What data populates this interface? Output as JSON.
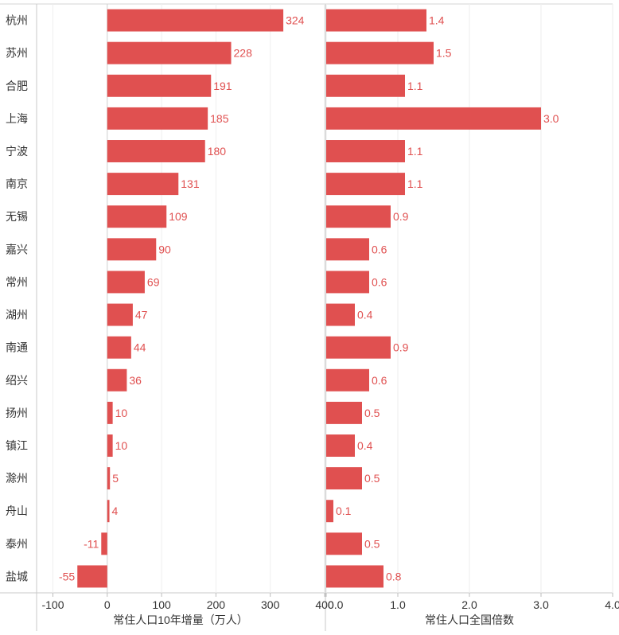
{
  "chart_data": [
    {
      "type": "bar",
      "orientation": "horizontal",
      "xlabel": "常住人口10年增量（万人）",
      "xlim": [
        -130,
        400
      ],
      "xticks": [
        -100,
        0,
        100,
        200,
        300,
        400
      ],
      "tick_labels": [
        "-100",
        "0",
        "100",
        "200",
        "300",
        "400"
      ],
      "grid": true,
      "categories": [
        "杭州",
        "苏州",
        "合肥",
        "上海",
        "宁波",
        "南京",
        "无锡",
        "嘉兴",
        "常州",
        "湖州",
        "南通",
        "绍兴",
        "扬州",
        "镇江",
        "滁州",
        "舟山",
        "泰州",
        "盐城"
      ],
      "values": [
        324,
        228,
        191,
        185,
        180,
        131,
        109,
        90,
        69,
        47,
        44,
        36,
        10,
        10,
        5,
        4,
        -11,
        -55
      ],
      "value_labels": [
        "324",
        "228",
        "191",
        "185",
        "180",
        "131",
        "109",
        "90",
        "69",
        "47",
        "44",
        "36",
        "10",
        "10",
        "5",
        "4",
        "-11",
        "-55"
      ],
      "color": "#e05050"
    },
    {
      "type": "bar",
      "orientation": "horizontal",
      "xlabel": "常住人口全国倍数",
      "xlim": [
        0,
        4.0
      ],
      "xticks": [
        0,
        1,
        2,
        3,
        4
      ],
      "tick_labels": [
        "0.0",
        "1.0",
        "2.0",
        "3.0",
        "4.0"
      ],
      "grid": true,
      "categories": [
        "杭州",
        "苏州",
        "合肥",
        "上海",
        "宁波",
        "南京",
        "无锡",
        "嘉兴",
        "常州",
        "湖州",
        "南通",
        "绍兴",
        "扬州",
        "镇江",
        "滁州",
        "舟山",
        "泰州",
        "盐城"
      ],
      "values": [
        1.4,
        1.5,
        1.1,
        3.0,
        1.1,
        1.1,
        0.9,
        0.6,
        0.6,
        0.4,
        0.9,
        0.6,
        0.5,
        0.4,
        0.5,
        0.1,
        0.5,
        0.8
      ],
      "value_labels": [
        "1.4",
        "1.5",
        "1.1",
        "3.0",
        "1.1",
        "1.1",
        "0.9",
        "0.6",
        "0.6",
        "0.4",
        "0.9",
        "0.6",
        "0.5",
        "0.4",
        "0.5",
        "0.1",
        "0.5",
        "0.8"
      ],
      "color": "#e05050"
    }
  ]
}
